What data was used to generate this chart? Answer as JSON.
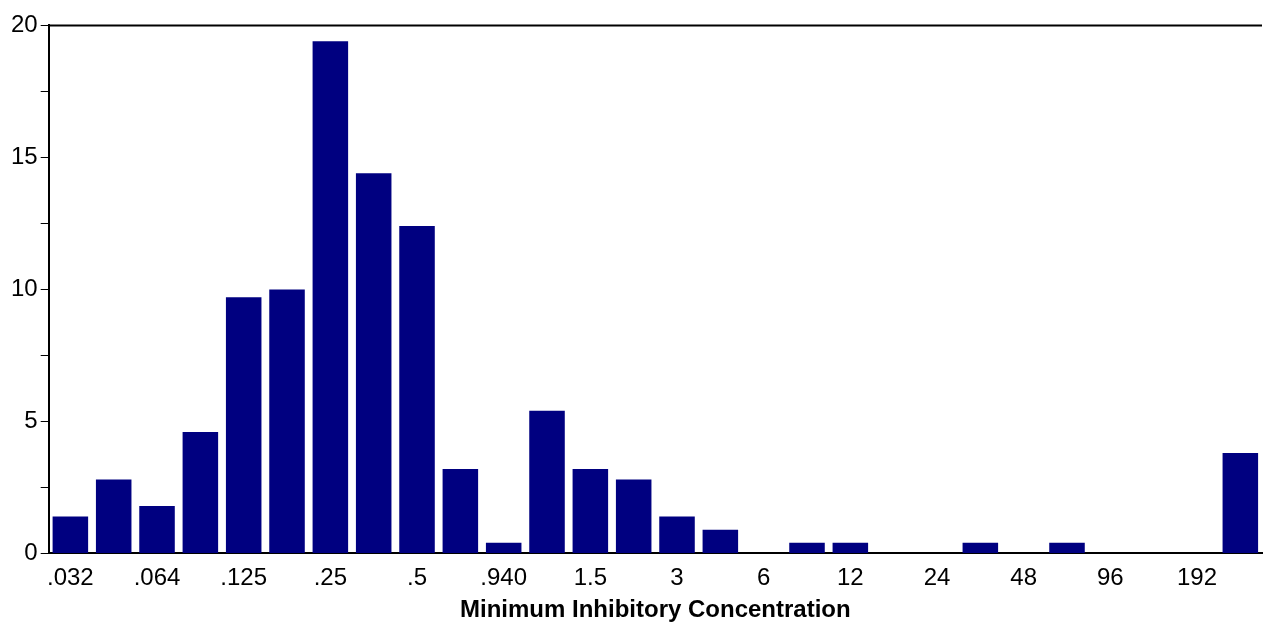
{
  "chart_data": {
    "type": "bar",
    "xlabel": "Minimum Inhibitory Concentration",
    "categories": [
      ".032",
      null,
      ".064",
      null,
      ".125",
      null,
      ".25",
      null,
      ".5",
      null,
      ".940",
      null,
      "1.5",
      null,
      "3",
      null,
      "6",
      null,
      "12",
      null,
      "24",
      null,
      "48",
      null,
      "96",
      null,
      "192",
      null
    ],
    "values": [
      1.4,
      2.8,
      1.8,
      4.6,
      9.7,
      10,
      19.4,
      14.4,
      12.4,
      3.2,
      0.4,
      5.4,
      3.2,
      2.8,
      1.4,
      0.9,
      0,
      0.4,
      0.4,
      0,
      0,
      0.4,
      0,
      0.4,
      0,
      0,
      0,
      3.8
    ],
    "color": "#000080",
    "ylim": [
      0,
      20
    ],
    "yticks": [
      0,
      {
        "value": 2.5,
        "label": null
      },
      5,
      {
        "value": 7.5,
        "label": null
      },
      10,
      {
        "value": 12.5,
        "label": null
      },
      15,
      {
        "value": 17.5,
        "label": null
      },
      20
    ],
    "grid": false,
    "legend": false
  }
}
